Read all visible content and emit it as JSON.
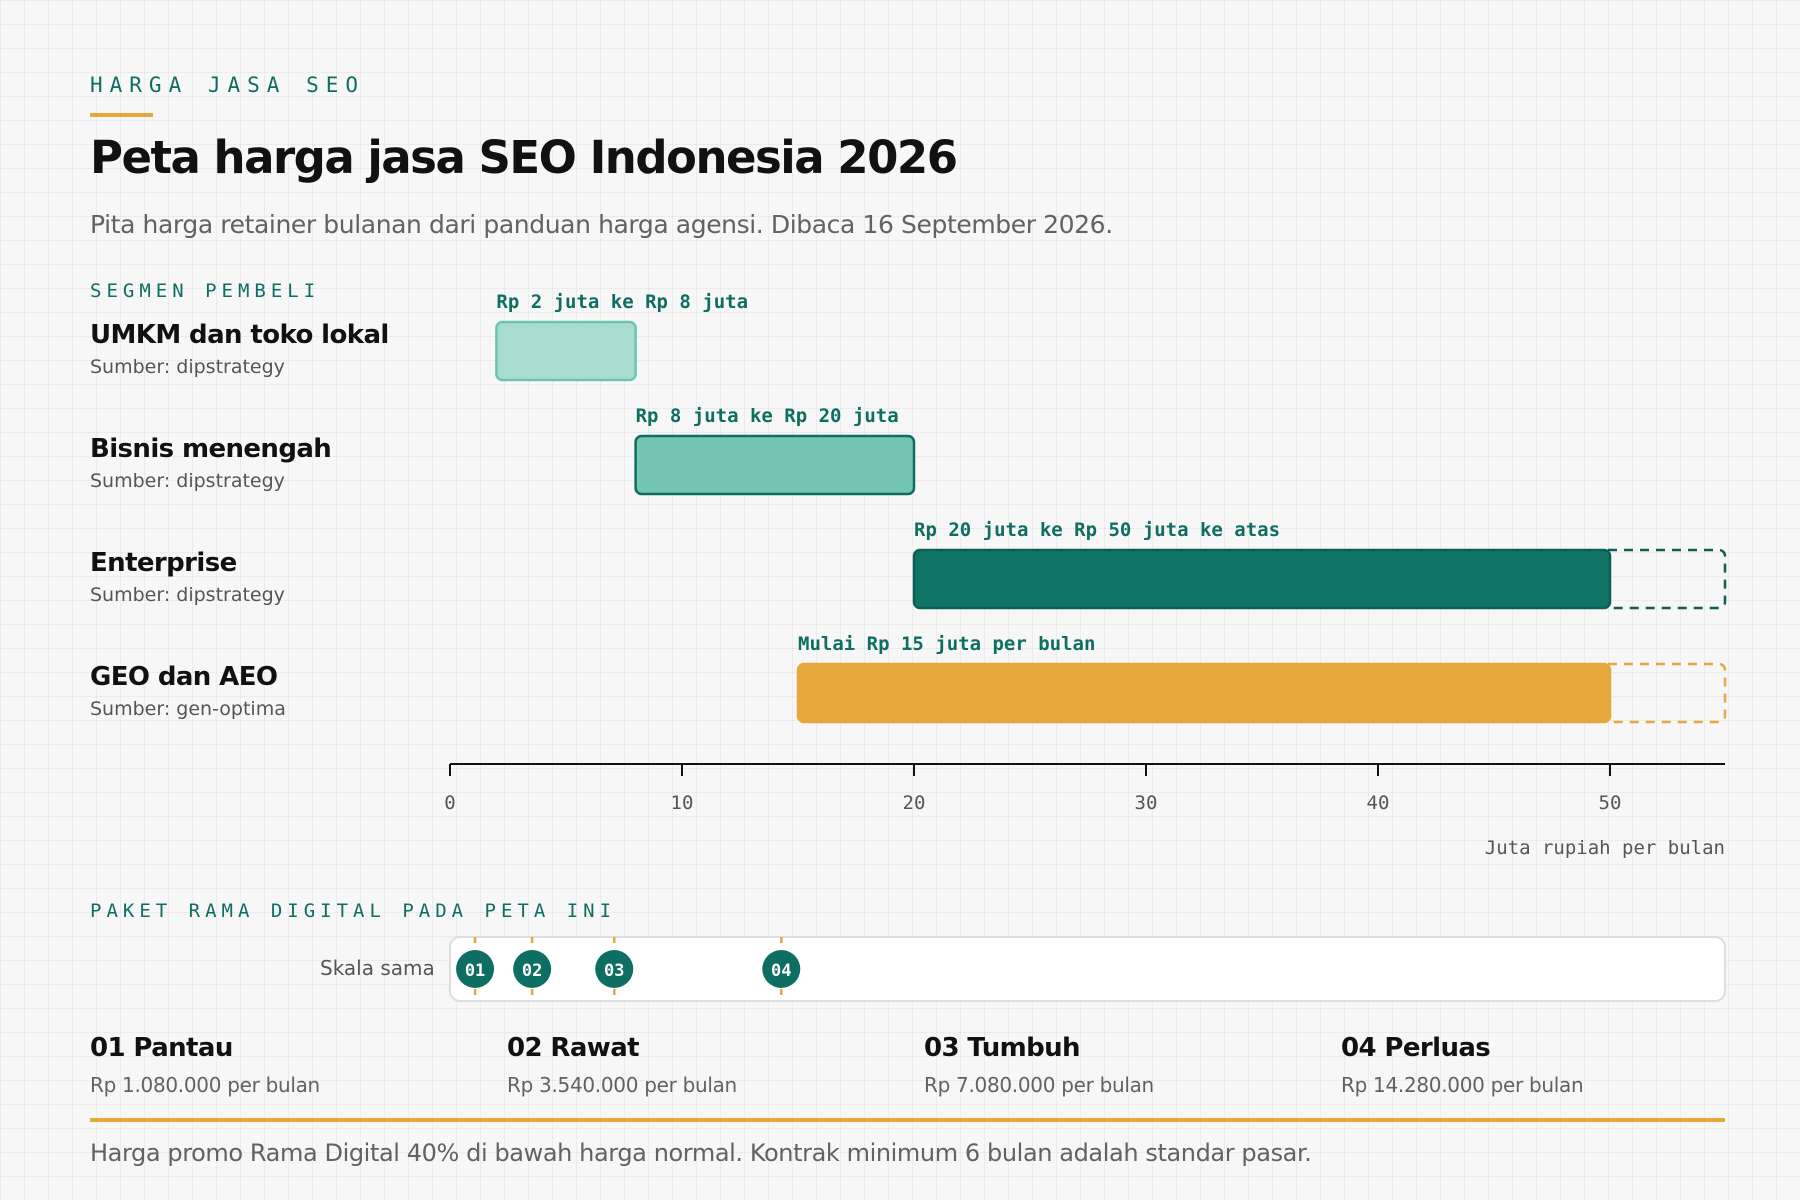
{
  "header": {
    "kicker": "HARGA JASA SEO",
    "title": "Peta harga jasa SEO Indonesia 2026",
    "subtitle": "Pita harga retainer bulanan dari panduan harga agensi. Dibaca 16 September 2026."
  },
  "segments_label": "SEGMEN PEMBELI",
  "segments": [
    {
      "name": "UMKM dan toko lokal",
      "source": "Sumber: dipstrategy",
      "label": "Rp 2 juta ke Rp 8 juta"
    },
    {
      "name": "Bisnis menengah",
      "source": "Sumber: dipstrategy",
      "label": "Rp 8 juta ke Rp 20 juta"
    },
    {
      "name": "Enterprise",
      "source": "Sumber: dipstrategy",
      "label": "Rp 20 juta ke Rp 50 juta ke atas"
    },
    {
      "name": "GEO dan AEO",
      "source": "Sumber: gen-optima",
      "label": "Mulai Rp 15 juta per bulan"
    }
  ],
  "chart_data": {
    "type": "bar",
    "orientation": "horizontal-range",
    "title": "Peta harga jasa SEO Indonesia 2026",
    "xlabel": "Juta rupiah per bulan",
    "xlim": [
      0,
      55
    ],
    "xticks": [
      0,
      10,
      20,
      30,
      40,
      50
    ],
    "bars": [
      {
        "category": "UMKM dan toko lokal",
        "start": 2,
        "end": 8,
        "open_ended": false,
        "color": "#a9ddd1",
        "stroke": "#6cc5b0"
      },
      {
        "category": "Bisnis menengah",
        "start": 8,
        "end": 20,
        "open_ended": false,
        "color": "#74c5b3",
        "stroke": "#0f6e63"
      },
      {
        "category": "Enterprise",
        "start": 20,
        "end": 50,
        "open_ended": true,
        "color": "#0f7366",
        "stroke": "#0d5f55"
      },
      {
        "category": "GEO dan AEO",
        "start": 15,
        "end": 50,
        "open_ended": true,
        "color": "#e6a83c",
        "stroke": "#e6a83c"
      }
    ],
    "packages": [
      {
        "code": "01",
        "name": "Pantau",
        "value": 1.08
      },
      {
        "code": "02",
        "name": "Rawat",
        "value": 3.54
      },
      {
        "code": "03",
        "name": "Tumbuh",
        "value": 7.08
      },
      {
        "code": "04",
        "name": "Perluas",
        "value": 14.28
      }
    ]
  },
  "packages_label": "PAKET RAMA DIGITAL PADA PETA INI",
  "scale_label": "Skala sama",
  "packages": [
    {
      "title": "01 Pantau",
      "price": "Rp 1.080.000 per bulan"
    },
    {
      "title": "02 Rawat",
      "price": "Rp 3.540.000 per bulan"
    },
    {
      "title": "03 Tumbuh",
      "price": "Rp 7.080.000 per bulan"
    },
    {
      "title": "04 Perluas",
      "price": "Rp 14.280.000 per bulan"
    }
  ],
  "footer_note": "Harga promo Rama Digital 40% di bawah harga normal. Kontrak minimum 6 bulan adalah standar pasar.",
  "colors": {
    "accent_teal": "#0f6e63",
    "accent_orange": "#e6a83c"
  }
}
